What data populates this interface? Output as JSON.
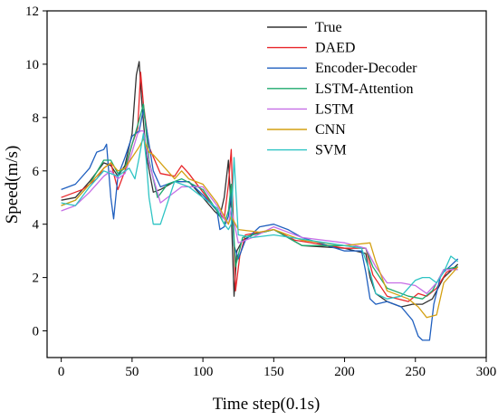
{
  "chart_data": {
    "type": "line",
    "title": "",
    "xlabel": "Time step(0.1s)",
    "ylabel": "Speed(m/s)",
    "xlim": [
      -10,
      300
    ],
    "ylim": [
      -1,
      12
    ],
    "xticks": [
      0,
      50,
      100,
      150,
      200,
      250,
      300
    ],
    "yticks": [
      0,
      2,
      4,
      6,
      8,
      10,
      12
    ],
    "grid": false,
    "legend": "top-right",
    "series": [
      {
        "name": "True",
        "color": "#333333",
        "x": [
          0,
          10,
          20,
          30,
          35,
          40,
          45,
          50,
          53,
          55,
          57,
          60,
          65,
          70,
          80,
          90,
          100,
          108,
          112,
          115,
          118,
          120,
          122,
          124,
          128,
          135,
          150,
          170,
          200,
          215,
          218,
          222,
          230,
          240,
          248,
          255,
          262,
          270,
          280
        ],
        "y": [
          4.9,
          5.0,
          5.6,
          6.3,
          6.2,
          5.8,
          6.2,
          7.4,
          9.6,
          10.1,
          8.5,
          6.6,
          5.2,
          5.3,
          5.6,
          5.6,
          5.0,
          4.5,
          4.3,
          5.0,
          6.4,
          4.5,
          1.3,
          3.0,
          3.4,
          3.6,
          3.8,
          3.2,
          3.1,
          2.9,
          2.0,
          1.4,
          1.1,
          0.9,
          1.0,
          1.0,
          1.2,
          2.0,
          2.5
        ]
      },
      {
        "name": "DAED",
        "color": "#e8262a",
        "x": [
          0,
          10,
          15,
          25,
          30,
          35,
          40,
          45,
          50,
          54,
          56,
          58,
          62,
          70,
          80,
          85,
          90,
          100,
          110,
          115,
          118,
          120,
          122,
          123,
          126,
          130,
          140,
          150,
          165,
          200,
          215,
          220,
          230,
          245,
          252,
          258,
          265,
          272,
          280
        ],
        "y": [
          5.0,
          5.2,
          5.3,
          5.7,
          6.1,
          6.3,
          5.3,
          6.0,
          7.0,
          7.6,
          9.7,
          8.5,
          6.9,
          5.9,
          5.8,
          6.2,
          5.9,
          5.2,
          4.5,
          4.2,
          5.5,
          6.8,
          3.2,
          1.5,
          2.8,
          3.6,
          3.7,
          3.8,
          3.4,
          3.1,
          3.1,
          2.1,
          1.3,
          1.1,
          1.4,
          1.3,
          1.6,
          2.2,
          2.4
        ]
      },
      {
        "name": "Encoder-Decoder",
        "color": "#1f5fbf",
        "x": [
          0,
          10,
          20,
          25,
          30,
          32,
          35,
          37,
          40,
          45,
          50,
          55,
          58,
          62,
          65,
          70,
          80,
          90,
          100,
          110,
          112,
          115,
          118,
          120,
          122,
          125,
          130,
          140,
          150,
          160,
          170,
          200,
          212,
          215,
          218,
          222,
          230,
          240,
          248,
          252,
          255,
          260,
          263,
          268,
          280
        ],
        "y": [
          5.3,
          5.5,
          6.1,
          6.7,
          6.8,
          7.0,
          5.0,
          4.2,
          5.8,
          6.5,
          7.3,
          7.5,
          8.3,
          7.0,
          6.0,
          5.4,
          5.6,
          5.6,
          5.1,
          4.5,
          3.8,
          3.9,
          4.3,
          5.2,
          3.2,
          2.7,
          3.4,
          3.9,
          4.0,
          3.8,
          3.5,
          3.0,
          3.0,
          2.2,
          1.2,
          1.0,
          1.1,
          0.9,
          0.4,
          -0.2,
          -0.35,
          -0.35,
          1.0,
          2.1,
          2.7
        ]
      },
      {
        "name": "LSTM-Attention",
        "color": "#1faa6e",
        "x": [
          0,
          10,
          20,
          30,
          35,
          40,
          45,
          50,
          55,
          58,
          62,
          68,
          75,
          85,
          100,
          110,
          115,
          118,
          120,
          123,
          128,
          135,
          150,
          170,
          200,
          215,
          220,
          230,
          245,
          255,
          262,
          270,
          280
        ],
        "y": [
          4.7,
          4.9,
          5.5,
          6.4,
          6.4,
          5.9,
          6.1,
          7.0,
          7.9,
          8.5,
          6.4,
          5.0,
          5.5,
          5.7,
          5.3,
          4.5,
          4.0,
          4.5,
          5.5,
          2.4,
          3.5,
          3.6,
          3.8,
          3.2,
          3.2,
          3.1,
          2.4,
          1.6,
          1.3,
          1.2,
          1.5,
          2.3,
          2.4
        ]
      },
      {
        "name": "LSTM",
        "color": "#c66ee6",
        "x": [
          0,
          10,
          20,
          30,
          35,
          40,
          45,
          50,
          54,
          56,
          58,
          62,
          70,
          85,
          100,
          110,
          115,
          118,
          120,
          125,
          135,
          150,
          170,
          200,
          215,
          222,
          230,
          240,
          250,
          258,
          265,
          270,
          280
        ],
        "y": [
          4.5,
          4.7,
          5.2,
          5.8,
          6.0,
          5.7,
          5.9,
          6.7,
          7.4,
          7.5,
          7.5,
          6.3,
          4.8,
          5.4,
          5.4,
          4.7,
          4.2,
          4.0,
          4.6,
          3.3,
          3.5,
          3.9,
          3.5,
          3.3,
          3.1,
          2.4,
          1.8,
          1.8,
          1.7,
          1.4,
          1.8,
          2.3,
          2.3
        ]
      },
      {
        "name": "CNN",
        "color": "#d4a012",
        "x": [
          0,
          10,
          20,
          30,
          35,
          40,
          45,
          50,
          55,
          58,
          62,
          65,
          70,
          80,
          85,
          90,
          100,
          110,
          115,
          118,
          120,
          125,
          140,
          150,
          170,
          200,
          218,
          222,
          230,
          245,
          252,
          258,
          265,
          270,
          280
        ],
        "y": [
          4.7,
          4.9,
          5.5,
          6.1,
          6.3,
          6.0,
          6.1,
          6.5,
          6.9,
          7.2,
          6.7,
          6.6,
          6.3,
          5.7,
          6.0,
          5.7,
          5.5,
          4.8,
          4.3,
          4.0,
          4.3,
          3.8,
          3.7,
          3.8,
          3.4,
          3.2,
          3.3,
          2.6,
          1.5,
          1.2,
          0.9,
          0.5,
          0.6,
          1.8,
          2.4
        ]
      },
      {
        "name": "SVM",
        "color": "#2ec4c4",
        "x": [
          0,
          10,
          20,
          30,
          40,
          45,
          48,
          52,
          55,
          58,
          60,
          62,
          65,
          70,
          80,
          90,
          100,
          110,
          115,
          118,
          120,
          122,
          125,
          135,
          150,
          200,
          212,
          218,
          222,
          230,
          240,
          250,
          255,
          260,
          265,
          270,
          275,
          280
        ],
        "y": [
          4.8,
          4.7,
          5.4,
          6.0,
          5.8,
          6.0,
          6.1,
          5.7,
          6.5,
          7.4,
          6.4,
          5.0,
          4.0,
          4.0,
          5.6,
          5.4,
          5.0,
          4.6,
          4.0,
          3.8,
          4.0,
          6.5,
          3.6,
          3.5,
          3.6,
          3.2,
          3.1,
          2.2,
          1.4,
          1.2,
          1.3,
          1.9,
          2.0,
          2.0,
          1.8,
          2.2,
          2.8,
          2.6
        ]
      }
    ]
  }
}
